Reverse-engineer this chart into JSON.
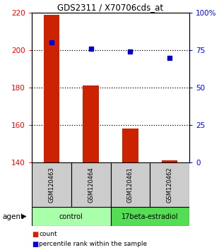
{
  "title": "GDS2311 / X70706cds_at",
  "samples": [
    "GSM120463",
    "GSM120464",
    "GSM120461",
    "GSM120462"
  ],
  "counts": [
    219,
    181,
    158,
    141
  ],
  "percentiles": [
    80,
    76,
    74,
    70
  ],
  "ylim_left": [
    140,
    220
  ],
  "ylim_right": [
    0,
    100
  ],
  "yticks_left": [
    140,
    160,
    180,
    200,
    220
  ],
  "yticks_right": [
    0,
    25,
    50,
    75,
    100
  ],
  "bar_color": "#cc2200",
  "scatter_color": "#0000cc",
  "group_row_color_light": "#aaffaa",
  "group_row_color_dark": "#55dd55",
  "sample_box_color": "#cccccc",
  "agent_label": "agent",
  "legend_items": [
    {
      "label": "count",
      "color": "#cc2200"
    },
    {
      "label": "percentile rank within the sample",
      "color": "#0000cc"
    }
  ],
  "dotted_lines": [
    160,
    180,
    200
  ],
  "bar_width": 0.4
}
